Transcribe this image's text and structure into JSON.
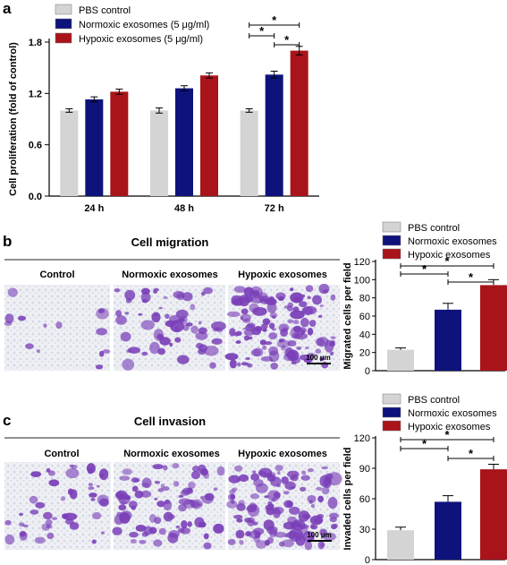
{
  "panels": {
    "a": "a",
    "b": "b",
    "c": "c"
  },
  "colors": {
    "pbs": "#d4d4d4",
    "normoxic": "#0d137a",
    "hypoxic": "#a8141a",
    "cell_stain": "#7a3fb8",
    "background_field": "#eef0f5"
  },
  "migration": {
    "title": "Cell migration",
    "columns": [
      "Control",
      "Normoxic exosomes",
      "Hypoxic exosomes"
    ],
    "scale_bar": "100 μm"
  },
  "invasion": {
    "title": "Cell invasion",
    "columns": [
      "Control",
      "Normoxic exosomes",
      "Hypoxic exosomes"
    ],
    "scale_bar": "100 μm"
  },
  "chart_data": [
    {
      "id": "a",
      "type": "bar",
      "ylabel": "Cell proliferation (fold of control)",
      "categories": [
        "24 h",
        "48 h",
        "72 h"
      ],
      "series": [
        {
          "name": "PBS control",
          "values": [
            1.0,
            1.0,
            1.0
          ],
          "errors": [
            0.02,
            0.03,
            0.02
          ]
        },
        {
          "name": "Normoxic exosomes (5 μg/ml)",
          "values": [
            1.13,
            1.26,
            1.42
          ],
          "errors": [
            0.03,
            0.03,
            0.04
          ]
        },
        {
          "name": "Hypoxic exosomes (5 μg/ml)",
          "values": [
            1.22,
            1.41,
            1.7
          ],
          "errors": [
            0.03,
            0.03,
            0.05
          ]
        }
      ],
      "ylim": [
        0,
        1.8
      ],
      "yticks": [
        "0.0",
        "0.6",
        "1.2",
        "1.8"
      ],
      "legend_position": "top-left",
      "significance": [
        "*",
        "*",
        "*"
      ]
    },
    {
      "id": "b",
      "type": "bar",
      "ylabel": "Migrated cells per field",
      "categories": [
        "PBS control",
        "Normoxic exosomes",
        "Hypoxic exosomes"
      ],
      "values": [
        23,
        67,
        94
      ],
      "errors": [
        2,
        7,
        6
      ],
      "ylim": [
        0,
        120
      ],
      "yticks": [
        "0",
        "20",
        "40",
        "60",
        "80",
        "100",
        "120"
      ],
      "legend": [
        "PBS control",
        "Normoxic exosomes",
        "Hypoxic exosomes"
      ],
      "significance": [
        "*",
        "*",
        "*"
      ]
    },
    {
      "id": "c",
      "type": "bar",
      "ylabel": "Invaded cells per field",
      "categories": [
        "PBS control",
        "Normoxic exosomes",
        "Hypoxic exosomes"
      ],
      "values": [
        29,
        57,
        89
      ],
      "errors": [
        3,
        6,
        5
      ],
      "ylim": [
        0,
        120
      ],
      "yticks": [
        "0",
        "30",
        "60",
        "90",
        "120"
      ],
      "legend": [
        "PBS control",
        "Normoxic exosomes",
        "Hypoxic exosomes"
      ],
      "significance": [
        "*",
        "*",
        "*"
      ]
    }
  ]
}
